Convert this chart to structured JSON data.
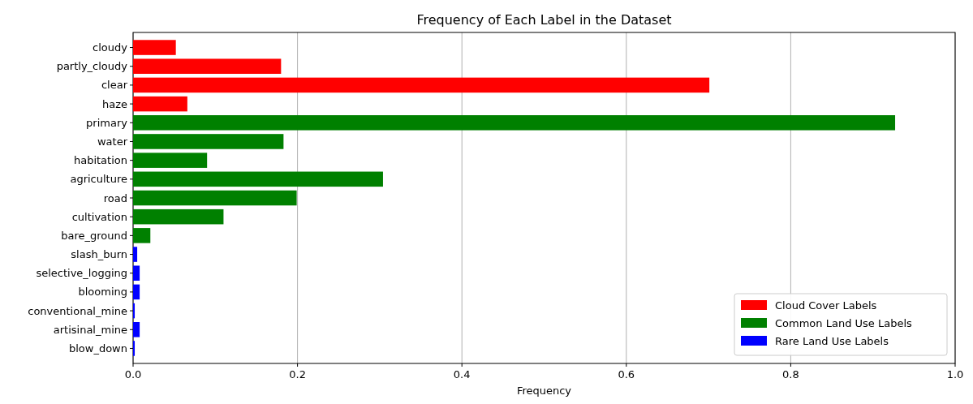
{
  "chart_data": {
    "type": "bar",
    "orientation": "horizontal",
    "stacked": true,
    "title": "Frequency of Each Label in the Dataset",
    "xlabel": "Frequency",
    "categories": [
      "cloudy",
      "partly_cloudy",
      "clear",
      "haze",
      "primary",
      "water",
      "habitation",
      "agriculture",
      "road",
      "cultivation",
      "bare_ground",
      "slash_burn",
      "selective_logging",
      "blooming",
      "conventional_mine",
      "artisinal_mine",
      "blow_down"
    ],
    "series": [
      {
        "name": "Cloud Cover Labels",
        "color": "#ff0000",
        "values": [
          0.052,
          0.18,
          0.701,
          0.066,
          null,
          null,
          null,
          null,
          null,
          null,
          null,
          null,
          null,
          null,
          null,
          null,
          null
        ]
      },
      {
        "name": "Common Land Use Labels",
        "color": "#008000",
        "values": [
          null,
          null,
          null,
          null,
          0.927,
          0.183,
          0.09,
          0.304,
          0.199,
          0.11,
          0.021,
          null,
          null,
          null,
          null,
          null,
          null
        ]
      },
      {
        "name": "Rare Land Use Labels",
        "color": "#0000ff",
        "values": [
          null,
          null,
          null,
          null,
          null,
          null,
          null,
          null,
          null,
          null,
          null,
          0.005,
          0.008,
          0.008,
          0.002,
          0.008,
          0.002
        ]
      }
    ],
    "xlim": [
      0,
      1
    ],
    "xticks": [
      {
        "value": 0,
        "label": "0.0"
      },
      {
        "value": 0.2,
        "label": "0.2"
      },
      {
        "value": 0.4,
        "label": "0.4"
      },
      {
        "value": 0.6,
        "label": "0.6"
      },
      {
        "value": 0.8,
        "label": "0.8"
      },
      {
        "value": 1,
        "label": "1.0"
      }
    ],
    "grid": "x",
    "legend": "bottom right"
  }
}
